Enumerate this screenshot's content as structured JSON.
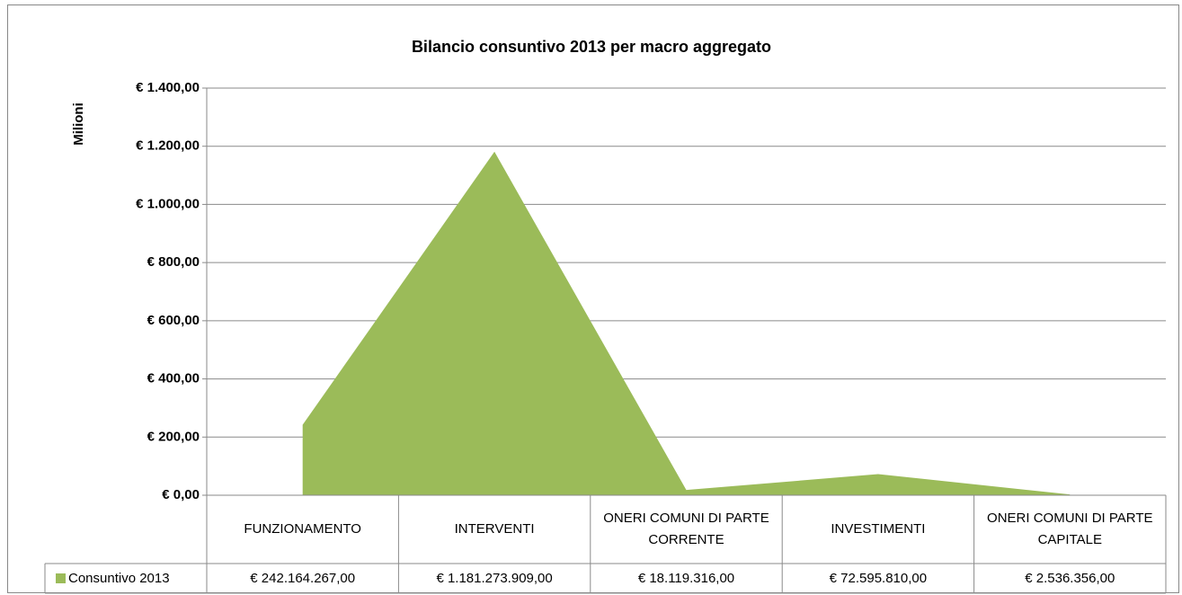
{
  "chart_data": {
    "type": "area",
    "title": "Bilancio consuntivo 2013 per macro aggregato",
    "y_label": "Milioni",
    "categories": [
      "FUNZIONAMENTO",
      "INTERVENTI",
      "ONERI COMUNI DI PARTE CORRENTE",
      "INVESTIMENTI",
      "ONERI COMUNI DI PARTE CAPITALE"
    ],
    "series": [
      {
        "name": "Consuntivo 2013",
        "color": "#9bbb59",
        "values": [
          242.164267,
          1181.273909,
          18.119316,
          72.59581,
          2.536356
        ],
        "value_labels": [
          "€ 242.164.267,00",
          "€ 1.181.273.909,00",
          "€ 18.119.316,00",
          "€ 72.595.810,00",
          "€ 2.536.356,00"
        ]
      }
    ],
    "ylim": [
      0,
      1400
    ],
    "yticks": [
      {
        "value": 0,
        "label": "€ 0,00"
      },
      {
        "value": 200,
        "label": "€ 200,00"
      },
      {
        "value": 400,
        "label": "€ 400,00"
      },
      {
        "value": 600,
        "label": "€ 600,00"
      },
      {
        "value": 800,
        "label": "€ 800,00"
      },
      {
        "value": 1000,
        "label": "€ 1.000,00"
      },
      {
        "value": 1200,
        "label": "€ 1.200,00"
      },
      {
        "value": 1400,
        "label": "€ 1.400,00"
      }
    ],
    "grid": true
  }
}
